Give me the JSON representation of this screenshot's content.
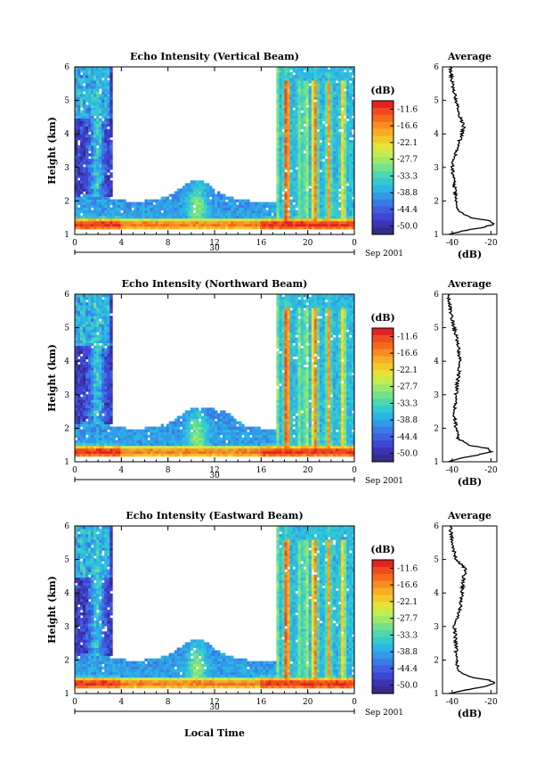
{
  "figure": {
    "bottom_xlabel": "Local Time",
    "date_label": "Sep 2001"
  },
  "colorbar": {
    "unit": "(dB)",
    "ticks": [
      "-11.6",
      "-16.6",
      "-22.1",
      "-27.7",
      "-33.3",
      "-38.8",
      "-44.4",
      "-50.0"
    ],
    "colors": [
      "#e32222",
      "#ef4a1f",
      "#f46a1d",
      "#f88d22",
      "#f7ab26",
      "#f2c92a",
      "#e4e33a",
      "#c3ec52",
      "#9be86b",
      "#74e08b",
      "#52d7ad",
      "#35cad0",
      "#2cb6e4",
      "#329be8",
      "#3a7ce6",
      "#3f5fdf",
      "#3e46d3",
      "#3b34b4",
      "#342c86"
    ]
  },
  "chart_data": [
    {
      "type": "heatmap",
      "title": "Echo Intensity (Vertical Beam)",
      "ylabel": "Height (km)",
      "ylim": [
        1,
        6
      ],
      "xlim": [
        0,
        24
      ],
      "xticks": [
        "0",
        "4",
        "8",
        "12",
        "16",
        "20",
        "0"
      ],
      "yticks": [
        "1",
        "2",
        "3",
        "4",
        "5",
        "6"
      ],
      "day_label": "30",
      "color_range_db": [
        -50.0,
        -11.6
      ],
      "average": {
        "title": "Average",
        "xlabel": "(dB)",
        "xticks": [
          "-40",
          "-20"
        ],
        "xlim": [
          -45,
          -17
        ],
        "profile_db": [
          {
            "h": 1.0,
            "db": -42
          },
          {
            "h": 1.1,
            "db": -35
          },
          {
            "h": 1.2,
            "db": -25
          },
          {
            "h": 1.3,
            "db": -19
          },
          {
            "h": 1.4,
            "db": -20
          },
          {
            "h": 1.5,
            "db": -30
          },
          {
            "h": 1.7,
            "db": -37
          },
          {
            "h": 2.0,
            "db": -38
          },
          {
            "h": 2.5,
            "db": -39
          },
          {
            "h": 3.0,
            "db": -40
          },
          {
            "h": 3.5,
            "db": -38
          },
          {
            "h": 4.0,
            "db": -35
          },
          {
            "h": 4.2,
            "db": -34
          },
          {
            "h": 4.5,
            "db": -36
          },
          {
            "h": 5.0,
            "db": -38
          },
          {
            "h": 5.5,
            "db": -40
          },
          {
            "h": 6.0,
            "db": -41
          }
        ]
      }
    },
    {
      "type": "heatmap",
      "title": "Echo Intensity (Northward Beam)",
      "ylabel": "Height (km)",
      "ylim": [
        1,
        6
      ],
      "xlim": [
        0,
        24
      ],
      "xticks": [
        "0",
        "4",
        "8",
        "12",
        "16",
        "20",
        "0"
      ],
      "yticks": [
        "1",
        "2",
        "3",
        "4",
        "5",
        "6"
      ],
      "day_label": "30",
      "color_range_db": [
        -50.0,
        -11.6
      ],
      "average": {
        "title": "Average",
        "xlabel": "(dB)",
        "xticks": [
          "-40",
          "-20"
        ],
        "xlim": [
          -45,
          -17
        ],
        "profile_db": [
          {
            "h": 1.0,
            "db": -42
          },
          {
            "h": 1.1,
            "db": -36
          },
          {
            "h": 1.2,
            "db": -27
          },
          {
            "h": 1.3,
            "db": -20
          },
          {
            "h": 1.4,
            "db": -22
          },
          {
            "h": 1.5,
            "db": -32
          },
          {
            "h": 1.7,
            "db": -37
          },
          {
            "h": 2.0,
            "db": -38
          },
          {
            "h": 2.5,
            "db": -39
          },
          {
            "h": 3.0,
            "db": -38
          },
          {
            "h": 3.5,
            "db": -37
          },
          {
            "h": 4.0,
            "db": -36
          },
          {
            "h": 4.5,
            "db": -37
          },
          {
            "h": 5.0,
            "db": -39
          },
          {
            "h": 5.5,
            "db": -41
          },
          {
            "h": 6.0,
            "db": -42
          }
        ]
      }
    },
    {
      "type": "heatmap",
      "title": "Echo Intensity (Eastward Beam)",
      "ylabel": "Height (km)",
      "ylim": [
        1,
        6
      ],
      "xlim": [
        0,
        24
      ],
      "xticks": [
        "0",
        "4",
        "8",
        "12",
        "16",
        "20",
        "0"
      ],
      "yticks": [
        "1",
        "2",
        "3",
        "4",
        "5",
        "6"
      ],
      "day_label": "30",
      "color_range_db": [
        -50.0,
        -11.6
      ],
      "average": {
        "title": "Average",
        "xlabel": "(dB)",
        "xticks": [
          "-40",
          "-20"
        ],
        "xlim": [
          -45,
          -17
        ],
        "profile_db": [
          {
            "h": 1.0,
            "db": -42
          },
          {
            "h": 1.1,
            "db": -34
          },
          {
            "h": 1.2,
            "db": -24
          },
          {
            "h": 1.3,
            "db": -18
          },
          {
            "h": 1.4,
            "db": -21
          },
          {
            "h": 1.5,
            "db": -31
          },
          {
            "h": 1.7,
            "db": -37
          },
          {
            "h": 2.0,
            "db": -38
          },
          {
            "h": 2.5,
            "db": -38
          },
          {
            "h": 3.0,
            "db": -39
          },
          {
            "h": 3.5,
            "db": -36
          },
          {
            "h": 4.0,
            "db": -35
          },
          {
            "h": 4.5,
            "db": -34
          },
          {
            "h": 4.7,
            "db": -33
          },
          {
            "h": 5.0,
            "db": -38
          },
          {
            "h": 5.5,
            "db": -40
          },
          {
            "h": 6.0,
            "db": -41
          }
        ]
      }
    }
  ]
}
